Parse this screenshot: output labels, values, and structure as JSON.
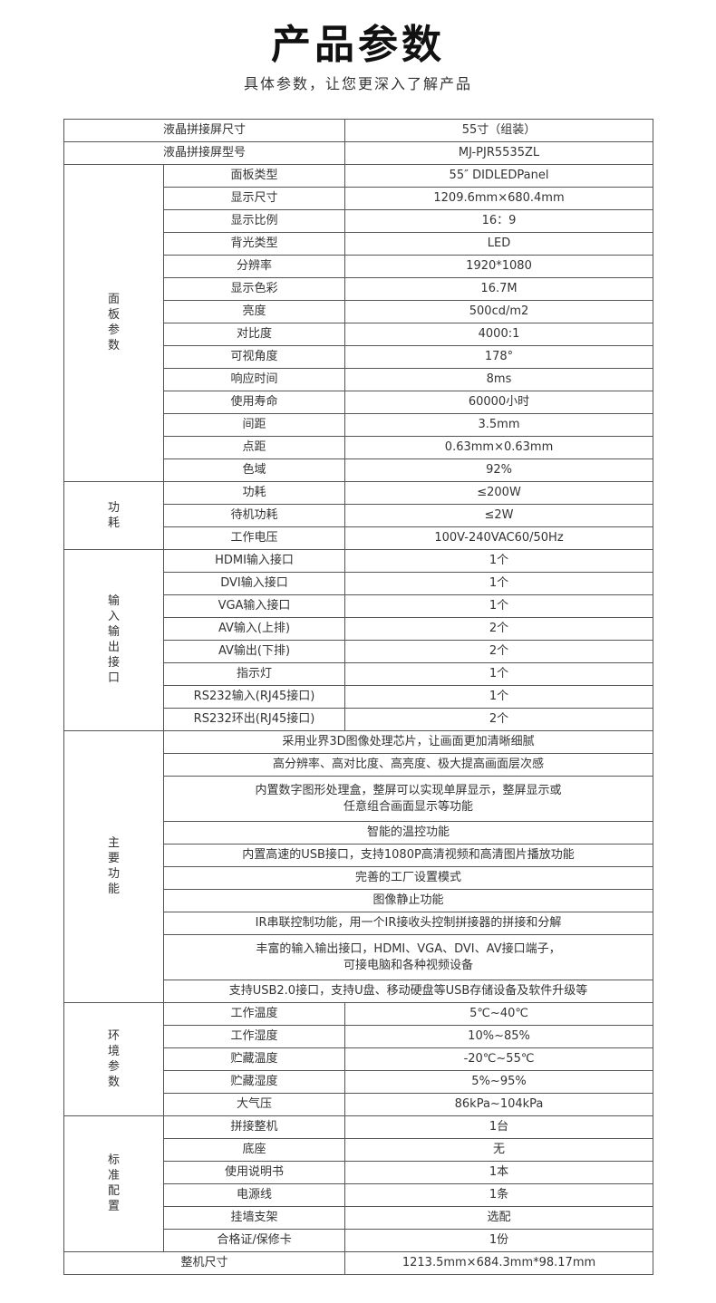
{
  "header": {
    "title": "产品参数",
    "subtitle": "具体参数，让您更深入了解产品"
  },
  "top_rows": [
    {
      "label": "液晶拼接屏尺寸",
      "value": "55寸（组装）"
    },
    {
      "label": "液晶拼接屏型号",
      "value": "MJ-PJR5535ZL"
    }
  ],
  "groups": [
    {
      "name": "面板参数",
      "rows": [
        {
          "label": "面板类型",
          "value": "55″ DIDLEDPanel"
        },
        {
          "label": "显示尺寸",
          "value": "1209.6mm×680.4mm"
        },
        {
          "label": "显示比例",
          "value": "16：9"
        },
        {
          "label": "背光类型",
          "value": "LED"
        },
        {
          "label": "分辨率",
          "value": "1920*1080"
        },
        {
          "label": "显示色彩",
          "value": "16.7M"
        },
        {
          "label": "亮度",
          "value": "500cd/m2"
        },
        {
          "label": "对比度",
          "value": "4000:1"
        },
        {
          "label": "可视角度",
          "value": "178°"
        },
        {
          "label": "响应时间",
          "value": "8ms"
        },
        {
          "label": "使用寿命",
          "value": "60000小时"
        },
        {
          "label": "间距",
          "value": "3.5mm"
        },
        {
          "label": "点距",
          "value": "0.63mm×0.63mm"
        },
        {
          "label": "色域",
          "value": "92%"
        }
      ]
    },
    {
      "name": "功耗",
      "rows": [
        {
          "label": "功耗",
          "value": "≤200W"
        },
        {
          "label": "待机功耗",
          "value": "≤2W"
        },
        {
          "label": "工作电压",
          "value": "100V-240VAC60/50Hz"
        }
      ]
    },
    {
      "name": "输入输出接口",
      "rows": [
        {
          "label": "HDMI输入接口",
          "value": "1个"
        },
        {
          "label": "DVI输入接口",
          "value": "1个"
        },
        {
          "label": "VGA输入接口",
          "value": "1个"
        },
        {
          "label": "AV输入(上排)",
          "value": "2个"
        },
        {
          "label": "AV输出(下排)",
          "value": "2个"
        },
        {
          "label": "指示灯",
          "value": "1个"
        },
        {
          "label": "RS232输入(RJ45接口)",
          "value": "1个"
        },
        {
          "label": "RS232环出(RJ45接口)",
          "value": "2个"
        }
      ]
    },
    {
      "name": "主要功能",
      "features": [
        [
          "采用业界3D图像处理芯片，让画面更加清晰细腻"
        ],
        [
          "高分辨率、高对比度、高亮度、极大提高画面层次感"
        ],
        [
          "内置数字图形处理盒，整屏可以实现单屏显示，整屏显示或",
          "任意组合画面显示等功能"
        ],
        [
          "智能的温控功能"
        ],
        [
          "内置高速的USB接口，支持1080P高清视频和高清图片播放功能"
        ],
        [
          "完善的工厂设置模式"
        ],
        [
          "图像静止功能"
        ],
        [
          "IR串联控制功能，用一个IR接收头控制拼接器的拼接和分解"
        ],
        [
          "丰富的输入输出接口，HDMI、VGA、DVI、AV接口端子，",
          "可接电脑和各种视频设备"
        ],
        [
          "支持USB2.0接口，支持U盘、移动硬盘等USB存储设备及软件升级等"
        ]
      ]
    },
    {
      "name": "环境参数",
      "rows": [
        {
          "label": "工作温度",
          "value": "5℃~40℃"
        },
        {
          "label": "工作湿度",
          "value": "10%~85%"
        },
        {
          "label": "贮藏温度",
          "value": "-20℃~55℃"
        },
        {
          "label": "贮藏湿度",
          "value": "5%~95%"
        },
        {
          "label": "大气压",
          "value": "86kPa~104kPa"
        }
      ]
    },
    {
      "name": "标准配置",
      "rows": [
        {
          "label": "拼接整机",
          "value": "1台"
        },
        {
          "label": "底座",
          "value": "无"
        },
        {
          "label": "使用说明书",
          "value": "1本"
        },
        {
          "label": "电源线",
          "value": "1条"
        },
        {
          "label": "挂墙支架",
          "value": "选配"
        },
        {
          "label": "合格证/保修卡",
          "value": "1份"
        }
      ]
    }
  ],
  "bottom_row": {
    "label": "整机尺寸",
    "value": "1213.5mm×684.3mm*98.17mm"
  }
}
